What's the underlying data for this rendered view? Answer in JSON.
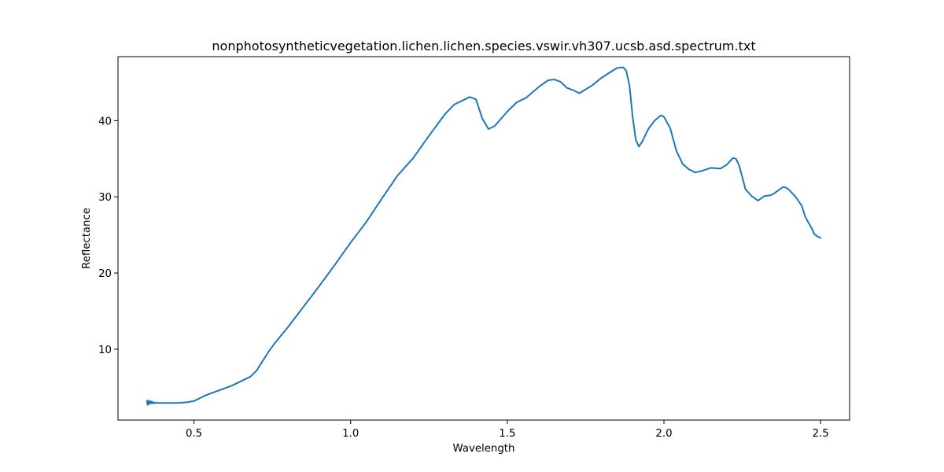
{
  "chart_data": {
    "type": "line",
    "title": "nonphotosyntheticvegetation.lichen.lichen.species.vswir.vh307.ucsb.asd.spectrum.txt",
    "xlabel": "Wavelength",
    "ylabel": "Reflectance",
    "xlim": [
      0.2575,
      2.5925
    ],
    "ylim": [
      0.7,
      48.4
    ],
    "xticks": [
      "0.5",
      "1.0",
      "1.5",
      "2.0",
      "2.5"
    ],
    "yticks": [
      "10",
      "20",
      "30",
      "40"
    ],
    "grid": false,
    "legend": "none",
    "series": [
      {
        "color": "#1f77b4",
        "x": [
          0.35,
          0.352,
          0.354,
          0.356,
          0.358,
          0.36,
          0.362,
          0.365,
          0.368,
          0.37,
          0.373,
          0.376,
          0.38,
          0.385,
          0.39,
          0.4,
          0.42,
          0.45,
          0.48,
          0.5,
          0.52,
          0.54,
          0.56,
          0.58,
          0.6,
          0.62,
          0.64,
          0.66,
          0.68,
          0.7,
          0.72,
          0.74,
          0.76,
          0.78,
          0.8,
          0.85,
          0.9,
          0.95,
          1.0,
          1.05,
          1.1,
          1.15,
          1.2,
          1.25,
          1.3,
          1.33,
          1.36,
          1.38,
          1.4,
          1.42,
          1.44,
          1.46,
          1.5,
          1.53,
          1.56,
          1.6,
          1.63,
          1.65,
          1.67,
          1.69,
          1.71,
          1.73,
          1.75,
          1.77,
          1.8,
          1.83,
          1.85,
          1.87,
          1.88,
          1.89,
          1.9,
          1.91,
          1.92,
          1.93,
          1.95,
          1.97,
          1.99,
          2.0,
          2.02,
          2.04,
          2.06,
          2.08,
          2.1,
          2.12,
          2.15,
          2.18,
          2.2,
          2.22,
          2.23,
          2.24,
          2.25,
          2.26,
          2.28,
          2.3,
          2.32,
          2.34,
          2.35,
          2.37,
          2.38,
          2.39,
          2.4,
          2.42,
          2.44,
          2.45,
          2.46,
          2.47,
          2.48,
          2.49,
          2.5
        ],
        "y": [
          3.2,
          2.7,
          3.3,
          2.8,
          3.1,
          2.9,
          3.2,
          2.9,
          3.1,
          2.9,
          3.0,
          2.9,
          3.0,
          2.95,
          2.95,
          2.95,
          2.95,
          2.95,
          3.05,
          3.2,
          3.6,
          4.0,
          4.3,
          4.6,
          4.9,
          5.2,
          5.6,
          6.0,
          6.4,
          7.2,
          8.5,
          9.8,
          10.9,
          11.9,
          12.9,
          15.6,
          18.3,
          21.1,
          24.0,
          26.7,
          29.8,
          32.8,
          35.1,
          38.0,
          40.8,
          42.1,
          42.7,
          43.1,
          42.8,
          40.3,
          38.9,
          39.3,
          41.2,
          42.4,
          43.0,
          44.4,
          45.3,
          45.4,
          45.1,
          44.3,
          44.0,
          43.6,
          44.1,
          44.6,
          45.6,
          46.4,
          46.9,
          47.0,
          46.5,
          44.6,
          40.5,
          37.5,
          36.6,
          37.2,
          38.9,
          40.0,
          40.7,
          40.5,
          39.0,
          36.0,
          34.3,
          33.6,
          33.2,
          33.4,
          33.8,
          33.7,
          34.2,
          35.1,
          35.0,
          34.1,
          32.6,
          31.0,
          30.1,
          29.5,
          30.1,
          30.2,
          30.4,
          31.0,
          31.3,
          31.2,
          30.9,
          30.0,
          28.8,
          27.5,
          26.7,
          26.0,
          25.1,
          24.8,
          24.6
        ]
      }
    ]
  }
}
